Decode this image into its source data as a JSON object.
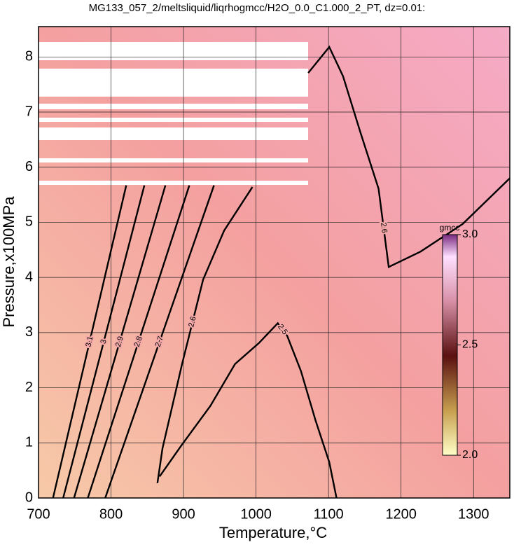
{
  "chart_data": {
    "type": "contour",
    "title": "MG133_057_2/meltsliquid/liqrhogmcc/H2O_0.0_C1.000_2_PT, dz=0.01:",
    "x_label": "Temperature,°C",
    "y_label": "Pressure,x100MPa",
    "xlim": [
      700,
      1350
    ],
    "ylim": [
      0,
      8.55
    ],
    "xticks": [
      700,
      800,
      900,
      1000,
      1100,
      1200,
      1300
    ],
    "yticks": [
      0,
      1,
      2,
      3,
      4,
      5,
      6,
      7,
      8
    ],
    "grid": true,
    "contours": [
      {
        "level": 2.5,
        "x": [
          867,
          898,
          937,
          971,
          1004,
          1030,
          1043,
          1062,
          1082,
          1101,
          1111
        ],
        "y": [
          0.39,
          0.97,
          1.67,
          2.43,
          2.81,
          3.17,
          2.94,
          2.3,
          1.41,
          0.65,
          0
        ]
      },
      {
        "level": 2.6,
        "x": [
          995,
          956,
          927,
          898,
          871,
          864
        ],
        "y": [
          5.64,
          4.85,
          3.96,
          2.43,
          0.9,
          0.27
        ]
      },
      {
        "level": 2.6,
        "x": [
          1072,
          1101,
          1120,
          1144,
          1169,
          1183,
          1227,
          1285,
          1350
        ],
        "y": [
          7.71,
          8.18,
          7.65,
          6.63,
          5.61,
          4.19,
          4.47,
          4.97,
          5.8
        ]
      },
      {
        "level": 2.7,
        "x": [
          792,
          942
        ],
        "y": [
          0,
          5.67
        ]
      },
      {
        "level": 2.8,
        "x": [
          768,
          908
        ],
        "y": [
          0,
          5.67
        ]
      },
      {
        "level": 2.9,
        "x": [
          749,
          875
        ],
        "y": [
          0,
          5.67
        ]
      },
      {
        "level": 3.0,
        "x": [
          734,
          846
        ],
        "y": [
          0,
          5.67
        ]
      },
      {
        "level": 3.1,
        "x": [
          720,
          821
        ],
        "y": [
          0,
          5.67
        ]
      }
    ],
    "colorbar": {
      "label": "gmcc",
      "lim": [
        2,
        3
      ],
      "ticks": [
        {
          "value": 2,
          "label": "2.0"
        },
        {
          "value": 2.5,
          "label": "2.5"
        },
        {
          "value": 3,
          "label": "3.0"
        }
      ]
    }
  }
}
